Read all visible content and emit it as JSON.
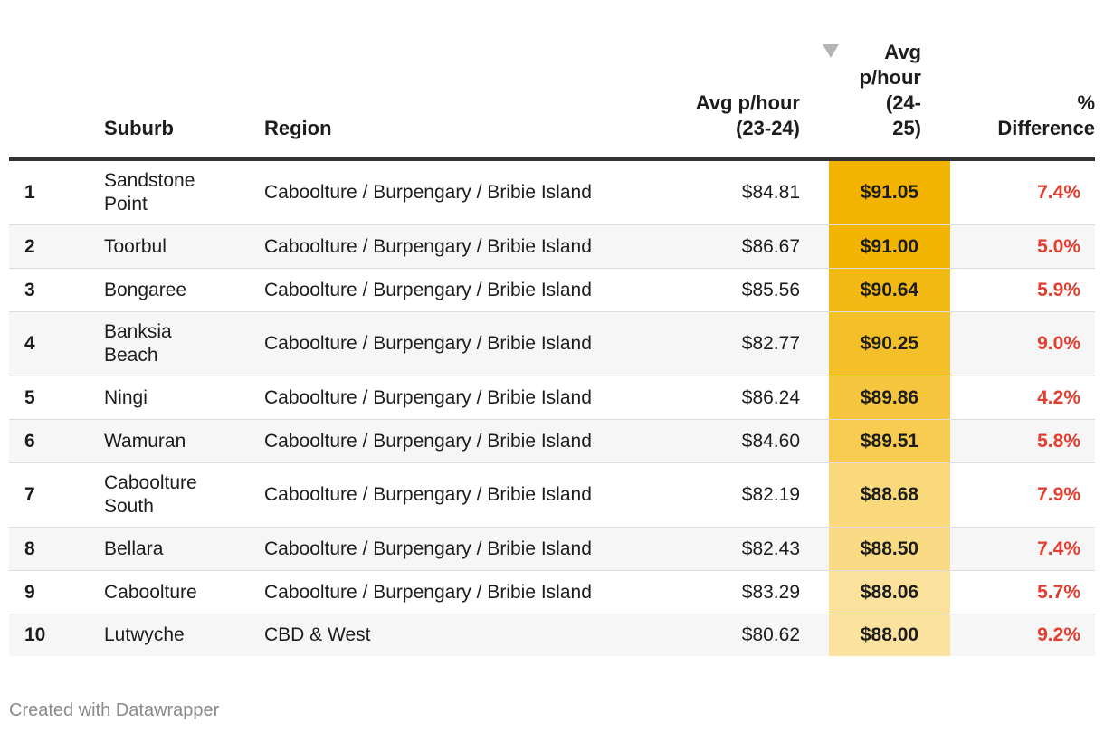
{
  "headers": {
    "suburb": "Suburb",
    "region": "Region",
    "avg_2324_line1": "Avg p/hour",
    "avg_2324_line2": "(23-24)",
    "avg_2425_line1": "Avg",
    "avg_2425_line2": "p/hour",
    "avg_2425_line3": "(24-",
    "avg_2425_line4": "25)",
    "diff_line1": "%",
    "diff_line2": "Difference"
  },
  "sort": {
    "column": "Avg p/hour (24-25)",
    "direction": "descending",
    "icon": "sort-desc-icon"
  },
  "colors": {
    "heat_high": "#f2b400",
    "heat_low": "#fbe39f",
    "difference_text": "#e23d2e",
    "header_rule": "#333333"
  },
  "chart_data": {
    "type": "table",
    "columns": [
      "",
      "Suburb",
      "Region",
      "Avg p/hour (23-24)",
      "Avg p/hour (24-25)",
      "% Difference"
    ],
    "rows": [
      {
        "rank": "1",
        "suburb_line1": "Sandstone",
        "suburb_line2": "Point",
        "region": "Caboolture / Burpengary / Bribie Island",
        "avg_2324": "$84.81",
        "avg_2425": "$91.05",
        "avg_2425_value": 91.05,
        "diff": "7.4%"
      },
      {
        "rank": "2",
        "suburb_line1": "Toorbul",
        "suburb_line2": "",
        "region": "Caboolture / Burpengary / Bribie Island",
        "avg_2324": "$86.67",
        "avg_2425": "$91.00",
        "avg_2425_value": 91.0,
        "diff": "5.0%"
      },
      {
        "rank": "3",
        "suburb_line1": "Bongaree",
        "suburb_line2": "",
        "region": "Caboolture / Burpengary / Bribie Island",
        "avg_2324": "$85.56",
        "avg_2425": "$90.64",
        "avg_2425_value": 90.64,
        "diff": "5.9%"
      },
      {
        "rank": "4",
        "suburb_line1": "Banksia",
        "suburb_line2": "Beach",
        "region": "Caboolture / Burpengary / Bribie Island",
        "avg_2324": "$82.77",
        "avg_2425": "$90.25",
        "avg_2425_value": 90.25,
        "diff": "9.0%"
      },
      {
        "rank": "5",
        "suburb_line1": "Ningi",
        "suburb_line2": "",
        "region": "Caboolture / Burpengary / Bribie Island",
        "avg_2324": "$86.24",
        "avg_2425": "$89.86",
        "avg_2425_value": 89.86,
        "diff": "4.2%"
      },
      {
        "rank": "6",
        "suburb_line1": "Wamuran",
        "suburb_line2": "",
        "region": "Caboolture / Burpengary / Bribie Island",
        "avg_2324": "$84.60",
        "avg_2425": "$89.51",
        "avg_2425_value": 89.51,
        "diff": "5.8%"
      },
      {
        "rank": "7",
        "suburb_line1": "Caboolture",
        "suburb_line2": "South",
        "region": "Caboolture / Burpengary / Bribie Island",
        "avg_2324": "$82.19",
        "avg_2425": "$88.68",
        "avg_2425_value": 88.68,
        "diff": "7.9%"
      },
      {
        "rank": "8",
        "suburb_line1": "Bellara",
        "suburb_line2": "",
        "region": "Caboolture / Burpengary / Bribie Island",
        "avg_2324": "$82.43",
        "avg_2425": "$88.50",
        "avg_2425_value": 88.5,
        "diff": "7.4%"
      },
      {
        "rank": "9",
        "suburb_line1": "Caboolture",
        "suburb_line2": "",
        "region": "Caboolture / Burpengary / Bribie Island",
        "avg_2324": "$83.29",
        "avg_2425": "$88.06",
        "avg_2425_value": 88.06,
        "diff": "5.7%"
      },
      {
        "rank": "10",
        "suburb_line1": "Lutwyche",
        "suburb_line2": "",
        "region": "CBD & West",
        "avg_2324": "$80.62",
        "avg_2425": "$88.00",
        "avg_2425_value": 88.0,
        "diff": "9.2%"
      }
    ]
  },
  "footer": {
    "credit": "Created with Datawrapper"
  }
}
